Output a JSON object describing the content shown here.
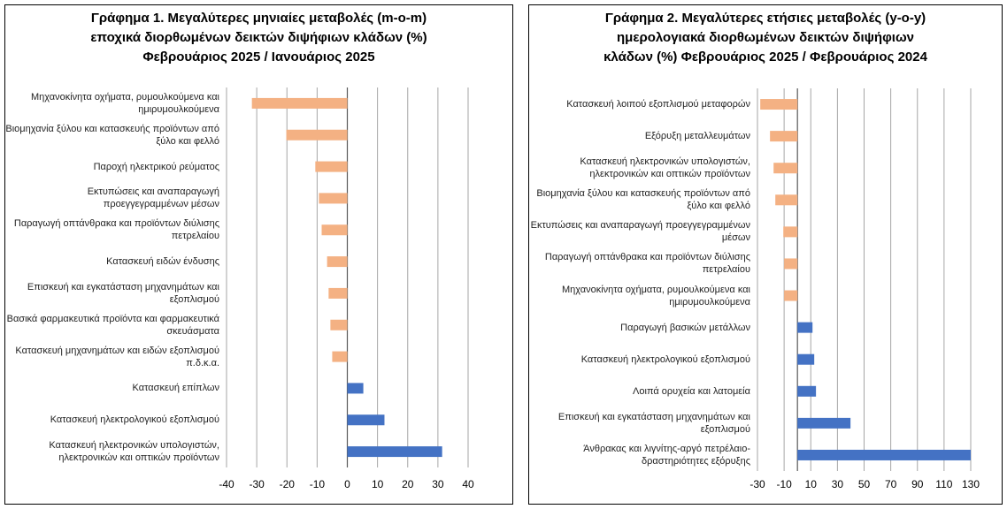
{
  "chart_data": [
    {
      "type": "barh",
      "title": [
        "Γράφημα 1. Μεγαλύτερες μηνιαίες μεταβολές (m-o-m)",
        "εποχικά διορθωμένων δεικτών διψήφιων κλάδων (%)",
        "Φεβρουάριος 2025 / Ιανουάριος 2025"
      ],
      "categories": [
        "Μηχανοκίνητα οχήματα, ρυμουλκούμενα και ημιρυμουλκούμενα",
        "Βιομηχανία ξύλου και κατασκευής προϊόντων από ξύλο και φελλό",
        "Παροχή ηλεκτρικού ρεύματος",
        "Εκτυπώσεις και αναπαραγωγή προεγγεγραμμένων μέσων",
        "Παραγωγή οπτάνθρακα και προϊόντων διύλισης πετρελαίου",
        "Κατασκευή ειδών ένδυσης",
        "Επισκευή και εγκατάσταση μηχανημάτων και εξοπλισμού",
        "Βασικά φαρμακευτικά προϊόντα και φαρμακευτικά σκευάσματα",
        "Κατασκευή μηχανημάτων και ειδών εξοπλισμού π.δ.κ.α.",
        "Κατασκευή επίπλων",
        "Κατασκευή ηλεκτρολογικού εξοπλισμού",
        "Κατασκευή ηλεκτρονικών υπολογιστών, ηλεκτρονικών και οπτικών προϊόντων"
      ],
      "values": [
        -31.6,
        -20.2,
        -10.6,
        -9.4,
        -8.5,
        -6.7,
        -6.2,
        -5.6,
        -5.0,
        5.3,
        12.3,
        31.4
      ],
      "negative_color": "#f4b183",
      "positive_color": "#4472c4",
      "xlim": [
        -40,
        40
      ],
      "xticks": [
        -40,
        -30,
        -20,
        -10,
        0,
        10,
        20,
        30,
        40
      ],
      "grid": true
    },
    {
      "type": "barh",
      "title": [
        "Γράφημα 2. Μεγαλύτερες ετήσιες μεταβολές (y-o-y)",
        "ημερολογιακά διορθωμένων δεικτών διψήφιων",
        "κλάδων (%) Φεβρουάριος 2025 / Φεβρουάριος 2024"
      ],
      "categories": [
        "Κατασκευή λοιπού εξοπλισμού μεταφορών",
        "Εξόρυξη μεταλλευμάτων",
        "Κατασκευή ηλεκτρονικών υπολογιστών, ηλεκτρονικών και οπτικών προϊόντων",
        "Βιομηχανία ξύλου και κατασκευής προϊόντων από ξύλο και φελλό",
        "Εκτυπώσεις και αναπαραγωγή προεγγεγραμμένων μέσων",
        "Παραγωγή οπτάνθρακα και προϊόντων διύλισης πετρελαίου",
        "Μηχανοκίνητα οχήματα, ρυμουλκούμενα και ημιρυμουλκούμενα",
        "Παραγωγή βασικών μετάλλων",
        "Κατασκευή ηλεκτρολογικού εξοπλισμού",
        "Λοιπά ορυχεία και λατομεία",
        "Επισκευή και εγκατάσταση μηχανημάτων και εξοπλισμού",
        "Άνθρακας και λιγνίτης-αργό πετρέλαιο-δραστηριότητες εξόρυξης"
      ],
      "values": [
        -27.9,
        -20.6,
        -17.9,
        -16.6,
        -10.6,
        -10.0,
        -10.0,
        11.3,
        12.6,
        13.9,
        39.8,
        130.0
      ],
      "negative_color": "#f4b183",
      "positive_color": "#4472c4",
      "xlim": [
        -30,
        130
      ],
      "xticks": [
        -30,
        -10,
        10,
        30,
        50,
        70,
        90,
        110,
        130
      ],
      "grid": true
    }
  ]
}
